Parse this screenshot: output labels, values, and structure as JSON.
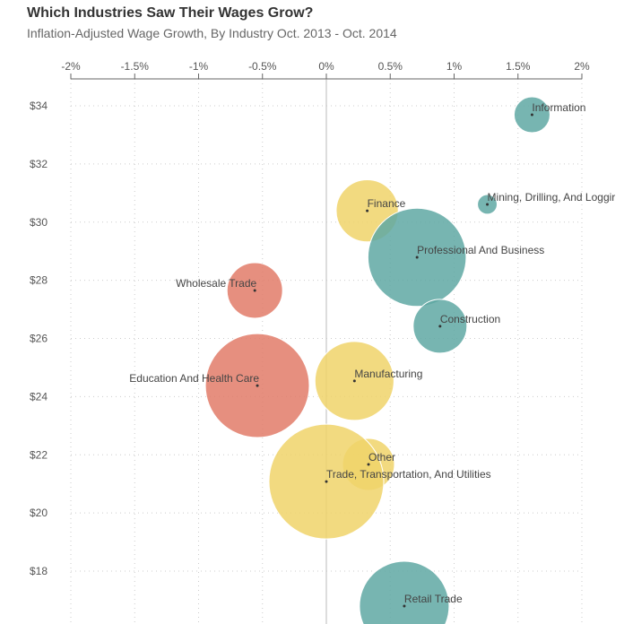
{
  "chart_data": {
    "type": "scatter",
    "title": "Which Industries Saw Their Wages Grow?",
    "subtitle": "Inflation-Adjusted Wage Growth, By Industry Oct. 2013 - Oct. 2014",
    "xlabel": "",
    "ylabel": "",
    "xlim": [
      -2,
      2
    ],
    "ylim": [
      16.3,
      35
    ],
    "x_ticks": [
      "-2%",
      "-1.5%",
      "-1%",
      "-0.5%",
      "0%",
      "0.5%",
      "1%",
      "1.5%",
      "2%"
    ],
    "x_tick_values": [
      -2,
      -1.5,
      -1,
      -0.5,
      0,
      0.5,
      1,
      1.5,
      2
    ],
    "y_ticks": [
      "$18",
      "$20",
      "$22",
      "$24",
      "$26",
      "$28",
      "$30",
      "$32",
      "$34"
    ],
    "y_tick_values": [
      18,
      20,
      22,
      24,
      26,
      28,
      30,
      32,
      34
    ],
    "x_axis_position": "top",
    "grid": true,
    "colors": {
      "teal": "#5fa8a3",
      "yellow": "#f0d36a",
      "red": "#e27b69"
    },
    "points": [
      {
        "label": "Information",
        "x": 1.61,
        "y": 33.69,
        "size": 4,
        "color": "#5fa8a3",
        "label_side": "right"
      },
      {
        "label": "Mining, Drilling, And Loggir",
        "x": 1.26,
        "y": 30.61,
        "size": 1.2,
        "color": "#5fa8a3",
        "label_side": "right"
      },
      {
        "label": "Finance",
        "x": 0.32,
        "y": 30.39,
        "size": 12,
        "color": "#f0d36a",
        "label_side": "right"
      },
      {
        "label": "Professional And Business",
        "x": 0.71,
        "y": 28.79,
        "size": 30,
        "color": "#5fa8a3",
        "label_side": "right"
      },
      {
        "label": "Wholesale Trade",
        "x": -0.56,
        "y": 27.65,
        "size": 9.6,
        "color": "#e27b69",
        "label_side": "left"
      },
      {
        "label": "Construction",
        "x": 0.89,
        "y": 26.42,
        "size": 9,
        "color": "#5fa8a3",
        "label_side": "right"
      },
      {
        "label": "Education And Health Care",
        "x": -0.54,
        "y": 24.38,
        "size": 33.6,
        "color": "#e27b69",
        "label_side": "left"
      },
      {
        "label": "Manufacturing",
        "x": 0.22,
        "y": 24.54,
        "size": 19.4,
        "color": "#f0d36a",
        "label_side": "right"
      },
      {
        "label": "Other",
        "x": 0.33,
        "y": 21.67,
        "size": 8.4,
        "color": "#f0d36a",
        "label_side": "right"
      },
      {
        "label": "Trade, Transportation, And Utilities",
        "x": 0.0,
        "y": 21.08,
        "size": 41,
        "color": "#f0d36a",
        "label_side": "right"
      },
      {
        "label": "Retail Trade",
        "x": 0.61,
        "y": 16.8,
        "size": 25,
        "color": "#5fa8a3",
        "label_side": "right"
      }
    ]
  }
}
